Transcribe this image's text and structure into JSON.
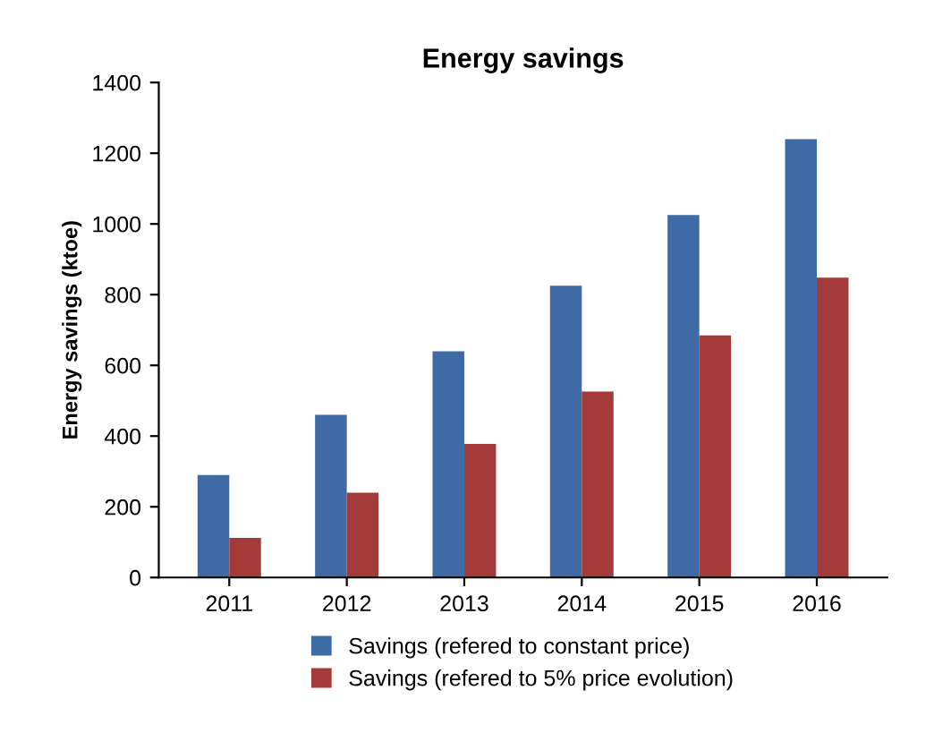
{
  "chart_data": {
    "type": "bar",
    "title": "Energy savings",
    "ylabel": "Energy savings (ktoe)",
    "categories": [
      "2011",
      "2012",
      "2013",
      "2014",
      "2015",
      "2016"
    ],
    "series": [
      {
        "name": "Savings (refered to constant price)",
        "color": "#3e6aa6",
        "values": [
          290,
          460,
          640,
          825,
          1025,
          1240
        ]
      },
      {
        "name": "Savings (refered to 5% price evolution)",
        "color": "#a33b3b",
        "values": [
          112,
          240,
          378,
          526,
          685,
          848
        ]
      }
    ],
    "ylim": [
      0,
      1400
    ],
    "yticks": [
      0,
      200,
      400,
      600,
      800,
      1000,
      1200,
      1400
    ],
    "grid": false,
    "legend": "bottom"
  }
}
